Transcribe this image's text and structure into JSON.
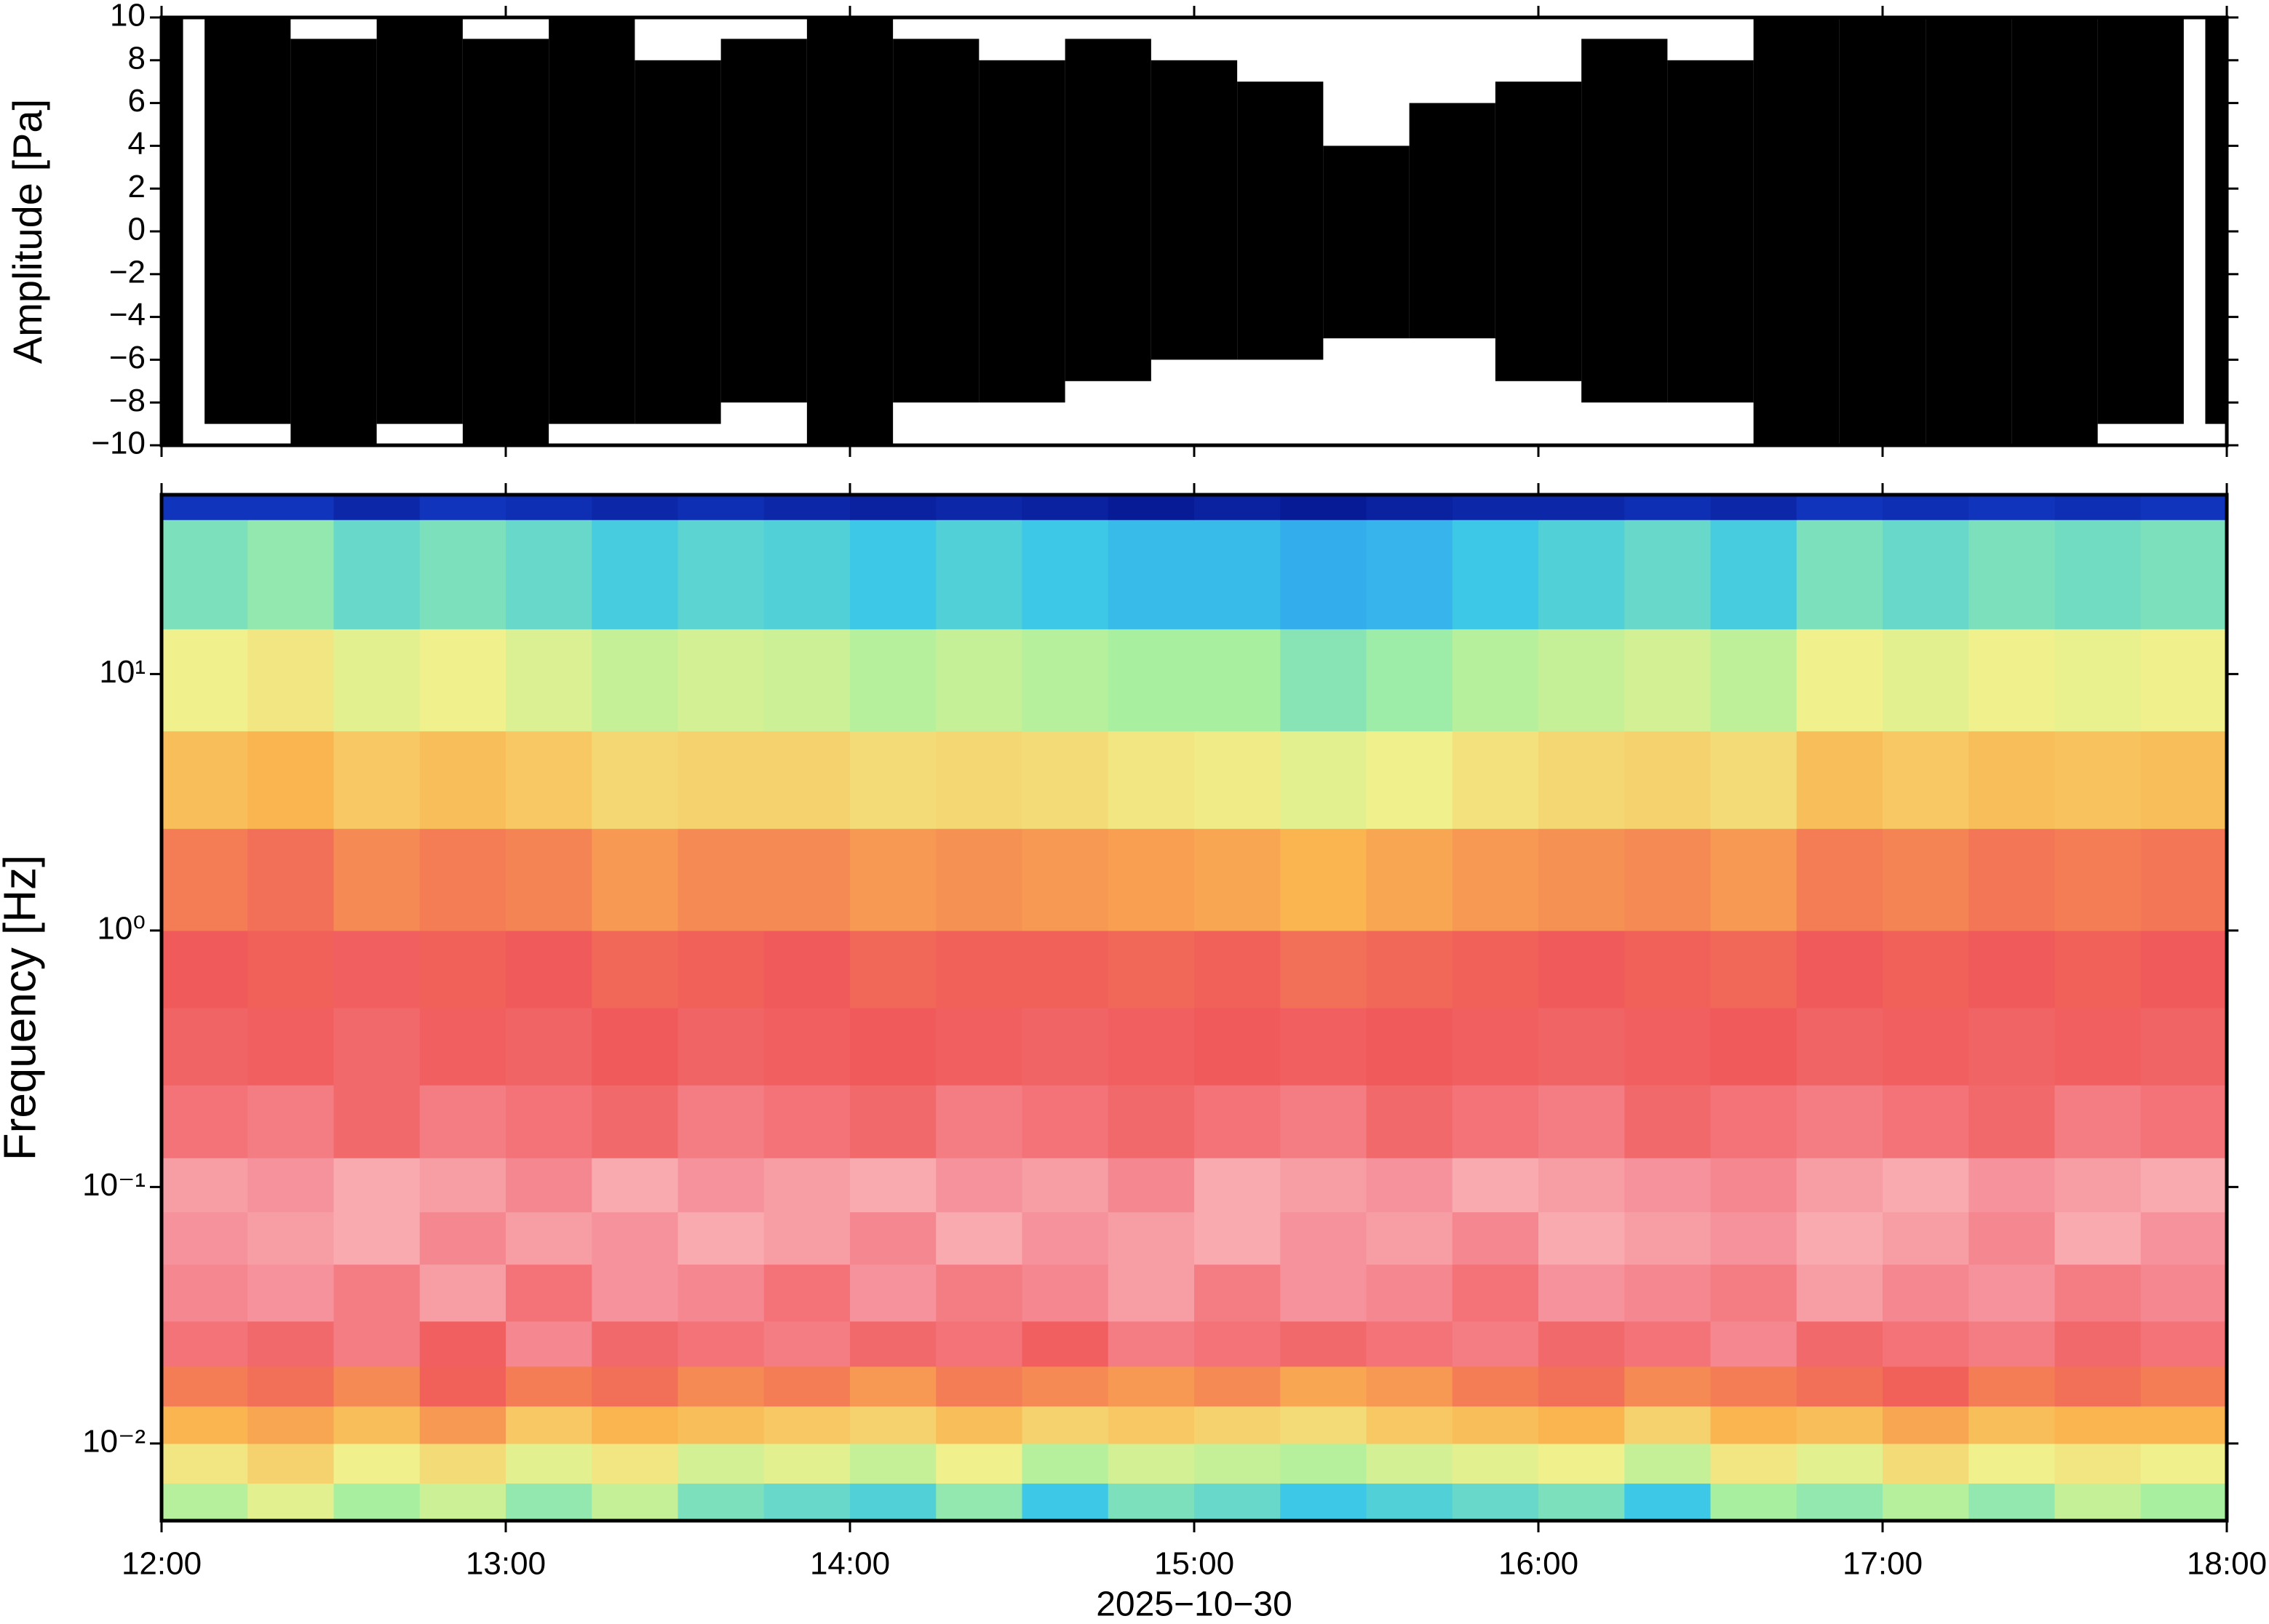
{
  "chart_data": [
    {
      "type": "band",
      "ylabel": "Amplitude [Pa]",
      "x": [
        "12:00",
        "12:15",
        "12:30",
        "12:45",
        "13:00",
        "13:15",
        "13:30",
        "13:45",
        "14:00",
        "14:15",
        "14:30",
        "14:45",
        "15:00",
        "15:15",
        "15:30",
        "15:45",
        "16:00",
        "16:15",
        "16:30",
        "16:45",
        "17:00",
        "17:15",
        "17:30",
        "17:45",
        "18:00"
      ],
      "series": [
        {
          "color": "#000000",
          "values": [
            10,
            10,
            9,
            10,
            9,
            10,
            8,
            9,
            10,
            9,
            8,
            9,
            8,
            7,
            4,
            6,
            7,
            9,
            8,
            10,
            10,
            10,
            10,
            10,
            10
          ]
        },
        {
          "color": "#000000",
          "values": [
            -10,
            -9,
            -10,
            -9,
            -10,
            -9,
            -9,
            -8,
            -10,
            -8,
            -8,
            -7,
            -6,
            -6,
            -5,
            -5,
            -7,
            -8,
            -8,
            -10,
            -10,
            -10,
            -10,
            -9,
            -9
          ]
        }
      ],
      "xlim": [
        "12:00",
        "18:00"
      ],
      "ylim": [
        -10,
        10
      ],
      "yticks": [
        {
          "value": -10,
          "label": "−10"
        },
        {
          "value": -8,
          "label": "−8"
        },
        {
          "value": -6,
          "label": "−6"
        },
        {
          "value": -4,
          "label": "−4"
        },
        {
          "value": -2,
          "label": "−2"
        },
        0,
        2,
        4,
        6,
        8,
        10
      ]
    },
    {
      "type": "heatmap",
      "ylabel": "Frequency [Hz]",
      "xlabel": "2025−10−30",
      "ylog": true,
      "x": [
        "12:00",
        "12:15",
        "12:30",
        "12:45",
        "13:00",
        "13:15",
        "13:30",
        "13:45",
        "14:00",
        "14:15",
        "14:30",
        "14:45",
        "15:00",
        "15:15",
        "15:30",
        "15:45",
        "16:00",
        "16:15",
        "16:30",
        "16:45",
        "17:00",
        "17:15",
        "17:30",
        "17:45",
        "18:00"
      ],
      "y": [
        0.005,
        0.007,
        0.01,
        0.014,
        0.02,
        0.03,
        0.05,
        0.08,
        0.13,
        0.25,
        0.5,
        1,
        2.5,
        6,
        15,
        40,
        50
      ],
      "z": [
        [
          42,
          48,
          40,
          45,
          38,
          44,
          36,
          34,
          32,
          38,
          30,
          36,
          34,
          30,
          32,
          34,
          36,
          30,
          40,
          38,
          42,
          38,
          44,
          40
        ],
        [
          52,
          56,
          50,
          54,
          48,
          52,
          46,
          48,
          44,
          50,
          42,
          46,
          44,
          42,
          46,
          48,
          50,
          44,
          52,
          48,
          54,
          50,
          52,
          50
        ],
        [
          62,
          64,
          60,
          66,
          58,
          62,
          60,
          58,
          56,
          60,
          56,
          58,
          56,
          54,
          58,
          60,
          62,
          56,
          62,
          60,
          64,
          60,
          62,
          62
        ],
        [
          70,
          72,
          68,
          74,
          70,
          72,
          68,
          70,
          66,
          70,
          68,
          66,
          68,
          64,
          66,
          70,
          72,
          68,
          70,
          72,
          74,
          70,
          72,
          70
        ],
        [
          80,
          78,
          82,
          76,
          84,
          78,
          80,
          82,
          78,
          80,
          76,
          82,
          80,
          78,
          80,
          82,
          78,
          80,
          84,
          78,
          80,
          82,
          78,
          80
        ],
        [
          84,
          86,
          82,
          88,
          80,
          86,
          84,
          80,
          86,
          82,
          84,
          88,
          82,
          86,
          84,
          80,
          86,
          84,
          82,
          88,
          84,
          86,
          82,
          84
        ],
        [
          86,
          88,
          90,
          84,
          88,
          86,
          90,
          88,
          84,
          90,
          86,
          88,
          90,
          86,
          88,
          84,
          90,
          88,
          86,
          90,
          88,
          84,
          90,
          86
        ],
        [
          88,
          86,
          90,
          88,
          84,
          90,
          86,
          88,
          90,
          86,
          88,
          84,
          90,
          88,
          86,
          90,
          88,
          86,
          84,
          88,
          90,
          86,
          88,
          90
        ],
        [
          80,
          82,
          78,
          82,
          80,
          78,
          82,
          80,
          78,
          82,
          80,
          78,
          80,
          82,
          78,
          80,
          82,
          78,
          80,
          82,
          80,
          78,
          82,
          80
        ],
        [
          77,
          76,
          78,
          76,
          77,
          75,
          77,
          76,
          75,
          76,
          77,
          76,
          75,
          76,
          75,
          76,
          77,
          76,
          75,
          77,
          76,
          77,
          76,
          77
        ],
        [
          75,
          74,
          76,
          74,
          75,
          73,
          74,
          75,
          73,
          74,
          74,
          73,
          74,
          72,
          73,
          74,
          75,
          74,
          73,
          75,
          74,
          75,
          74,
          75
        ],
        [
          70,
          72,
          68,
          70,
          69,
          66,
          68,
          68,
          66,
          67,
          66,
          65,
          64,
          62,
          64,
          66,
          67,
          68,
          66,
          70,
          69,
          71,
          70,
          71
        ],
        [
          60,
          62,
          58,
          60,
          58,
          55,
          56,
          56,
          54,
          55,
          54,
          52,
          51,
          48,
          50,
          53,
          55,
          56,
          54,
          60,
          58,
          60,
          59,
          60
        ],
        [
          50,
          52,
          48,
          50,
          47,
          44,
          46,
          45,
          42,
          44,
          42,
          40,
          40,
          37,
          39,
          42,
          44,
          46,
          43,
          50,
          48,
          50,
          49,
          50
        ],
        [
          36,
          38,
          34,
          36,
          34,
          31,
          33,
          32,
          30,
          32,
          30,
          28,
          28,
          26,
          27,
          30,
          32,
          34,
          31,
          36,
          34,
          36,
          35,
          36
        ],
        [
          8,
          8,
          6,
          8,
          7,
          6,
          7,
          6,
          5,
          6,
          5,
          4,
          5,
          4,
          5,
          6,
          6,
          7,
          6,
          8,
          7,
          8,
          7,
          8
        ]
      ],
      "colorscale": [
        [
          0,
          "#000070"
        ],
        [
          15,
          "#1e64ff"
        ],
        [
          30,
          "#3cc8e6"
        ],
        [
          40,
          "#a8f0a0"
        ],
        [
          50,
          "#f0f08c"
        ],
        [
          62,
          "#fab450"
        ],
        [
          75,
          "#f05a5a"
        ],
        [
          85,
          "#f58c96"
        ],
        [
          95,
          "#fcc8c8"
        ]
      ],
      "xlim": [
        "12:00",
        "18:00"
      ],
      "ylim": [
        0.005,
        50
      ],
      "xticks": [
        "12:00",
        "13:00",
        "14:00",
        "15:00",
        "16:00",
        "17:00",
        "18:00"
      ],
      "yticks": [
        {
          "value": 0.01,
          "label": "10⁻²"
        },
        {
          "value": 0.1,
          "label": "10⁻¹"
        },
        {
          "value": 1,
          "label": "10⁰"
        },
        {
          "value": 10,
          "label": "10¹"
        }
      ]
    }
  ]
}
